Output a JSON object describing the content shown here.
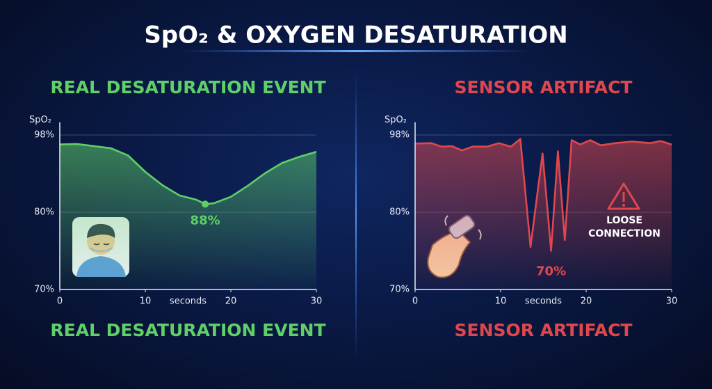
{
  "title": "SpO₂ & OXYGEN DESATURATION",
  "chart_data": [
    {
      "type": "line",
      "title": "REAL DESATURATION EVENT",
      "caption": "REAL DESATURATION EVENT",
      "ylabel": "SpO₂",
      "xlabel": "seconds",
      "color": "#5fd068",
      "grid": true,
      "xlim": [
        0,
        30
      ],
      "xticks": [
        0,
        10,
        20,
        30
      ],
      "ylim": [
        70,
        100
      ],
      "yticks": [
        {
          "value": 70,
          "label": "70%"
        },
        {
          "value": 80,
          "label": "80%"
        },
        {
          "value": 98,
          "label": "98%"
        }
      ],
      "x": [
        0,
        2,
        4,
        6,
        8,
        10,
        12,
        14,
        16,
        17,
        18,
        20,
        22,
        24,
        26,
        28,
        30
      ],
      "values": [
        95.8,
        95.9,
        95.4,
        94.9,
        93.2,
        89.4,
        86.3,
        83.9,
        82.9,
        81.9,
        82.1,
        83.6,
        86.2,
        89.1,
        91.5,
        92.9,
        94.1
      ],
      "annotations": [
        "88%"
      ]
    },
    {
      "type": "line",
      "title": "SENSOR ARTIFACT",
      "caption": "SENSOR ARTIFACT",
      "ylabel": "SpO₂",
      "xlabel": "seconds",
      "color": "#e0474c",
      "grid": true,
      "xlim": [
        0,
        30
      ],
      "xticks": [
        0,
        10,
        20,
        30
      ],
      "ylim": [
        70,
        100
      ],
      "yticks": [
        {
          "value": 70,
          "label": "70%"
        },
        {
          "value": 80,
          "label": "80%"
        },
        {
          "value": 98,
          "label": "98%"
        }
      ],
      "x": [
        0,
        1.9,
        3.1,
        4.3,
        5.5,
        6.7,
        8.4,
        9.8,
        11.2,
        12.3,
        13.5,
        14.9,
        15.9,
        16.7,
        17.5,
        18.3,
        19.3,
        20.5,
        21.7,
        23.4,
        25.4,
        27.5,
        28.7,
        30
      ],
      "values": [
        96.0,
        96.1,
        95.3,
        95.4,
        94.4,
        95.3,
        95.3,
        96.1,
        95.3,
        97.1,
        75.5,
        93.7,
        75.0,
        94.2,
        76.4,
        96.8,
        95.8,
        96.8,
        95.6,
        96.1,
        96.5,
        96.1,
        96.6,
        95.8
      ],
      "annotations": [
        "70%",
        "LOOSE CONNECTION"
      ]
    }
  ]
}
